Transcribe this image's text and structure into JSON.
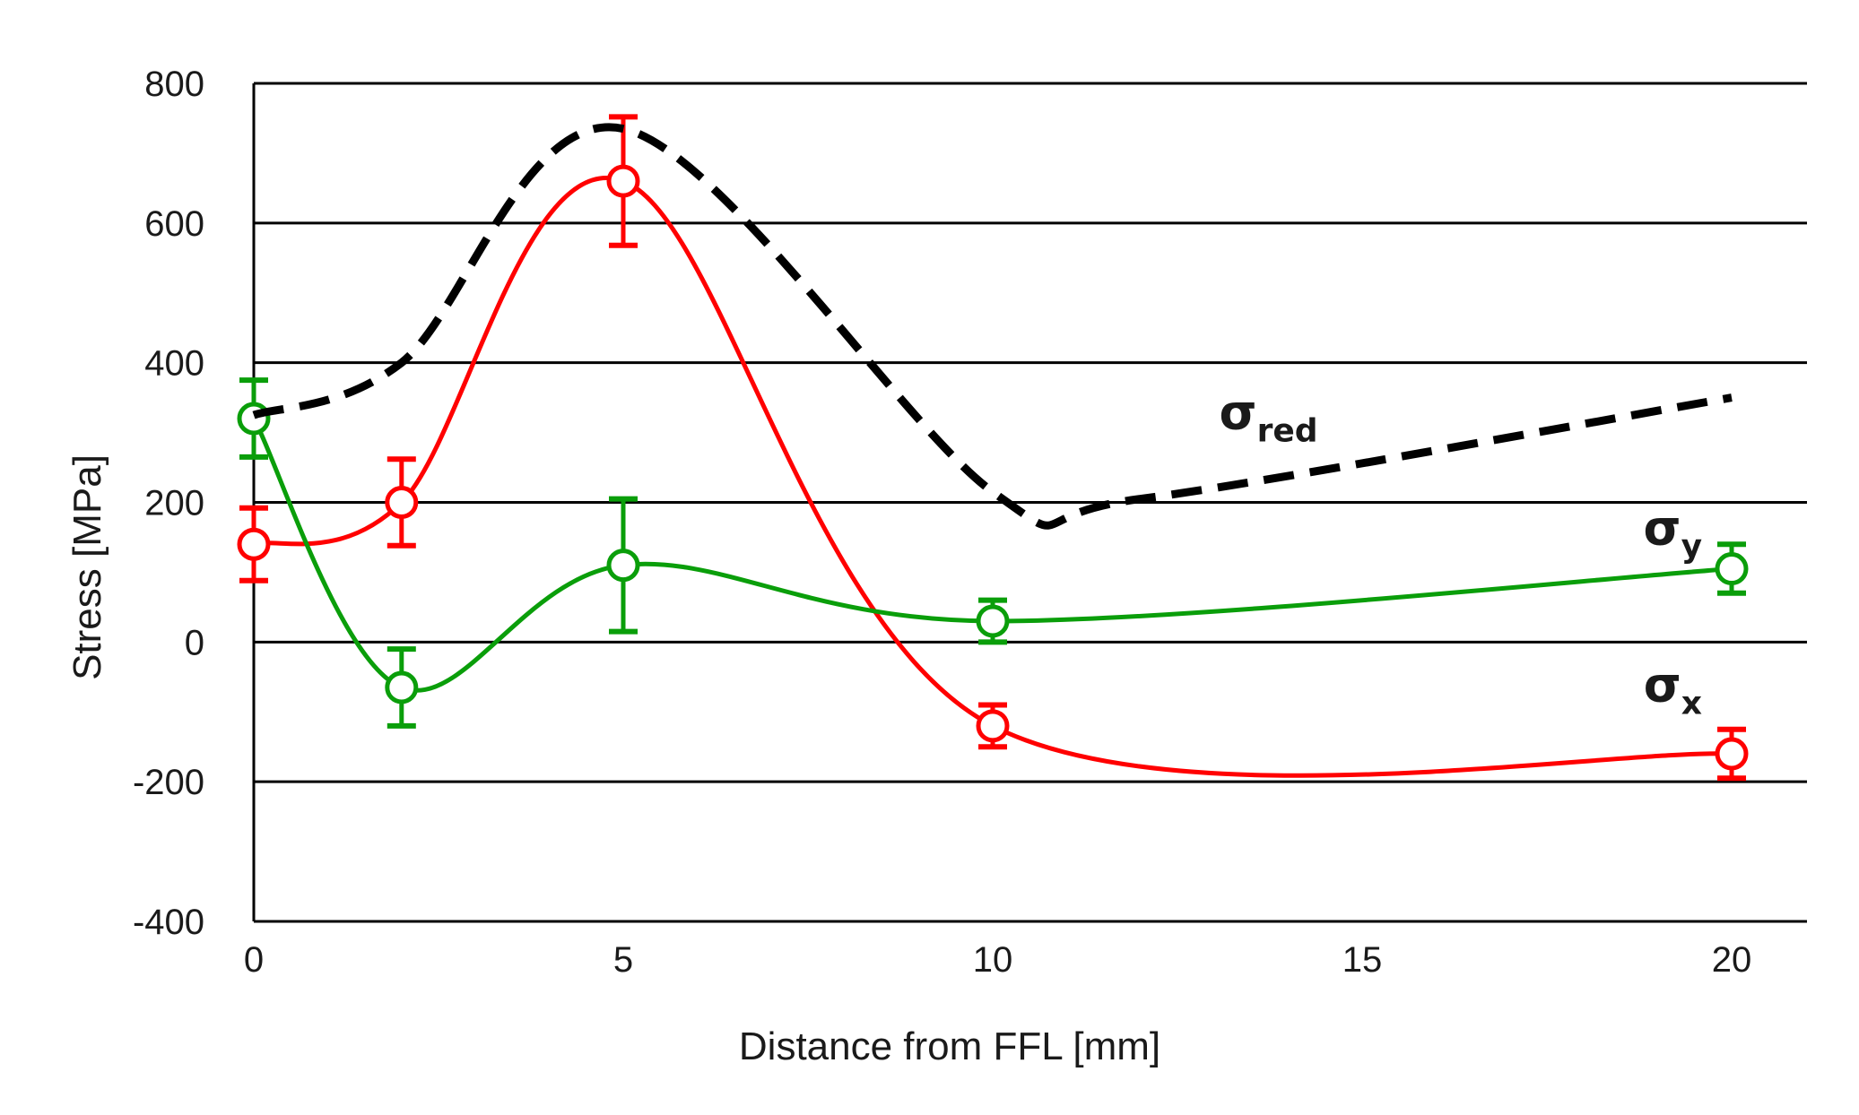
{
  "chart_data": {
    "type": "line",
    "title": "",
    "xlabel": "Distance from FFL [mm]",
    "ylabel": "Stress [MPa]",
    "xlim": [
      0,
      21
    ],
    "ylim": [
      -400,
      800
    ],
    "xticks": [
      0,
      5,
      10,
      15,
      20
    ],
    "xtick_labels": [
      "0",
      "5",
      "10",
      "15",
      "20"
    ],
    "yticks": [
      -400,
      -200,
      0,
      200,
      400,
      600,
      800
    ],
    "ytick_labels": [
      "-400",
      "-200",
      "0",
      "200",
      "400",
      "600",
      "800"
    ],
    "grid": "horizontal",
    "series": [
      {
        "name": "σx",
        "label_main": "σ",
        "label_sub": "x",
        "label_pos": [
          19.6,
          -85
        ],
        "color": "#ff0000",
        "style": "solid",
        "markers": true,
        "x": [
          0,
          2,
          5,
          10,
          20
        ],
        "y": [
          140,
          200,
          660,
          -120,
          -160
        ],
        "err": [
          52,
          62,
          92,
          30,
          35
        ]
      },
      {
        "name": "σy",
        "label_main": "σ",
        "label_sub": "y",
        "label_pos": [
          19.6,
          140
        ],
        "color": "#0a9e0a",
        "style": "solid",
        "markers": true,
        "x": [
          0,
          2,
          5,
          10,
          20
        ],
        "y": [
          320,
          -65,
          110,
          30,
          105
        ],
        "err": [
          55,
          55,
          95,
          30,
          35
        ]
      },
      {
        "name": "σred",
        "label_main": "σ",
        "label_sub": "red",
        "label_pos": [
          14.4,
          305
        ],
        "color": "#000000",
        "style": "dashed",
        "markers": false,
        "x": [
          0,
          2,
          5,
          10,
          12,
          20
        ],
        "y": [
          325,
          400,
          735,
          215,
          205,
          350
        ],
        "err": []
      }
    ]
  }
}
